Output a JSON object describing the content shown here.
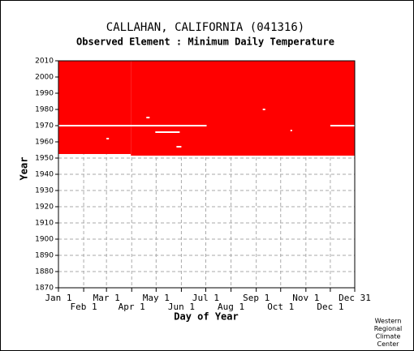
{
  "chart_data": {
    "type": "availability",
    "title": "CALLAHAN, CALIFORNIA   (041316)",
    "subtitle": "Observed Element : Minimum Daily Temperature",
    "x_label": "Day of Year",
    "y_label": "Year",
    "credit": [
      "Western",
      "Regional",
      "Climate",
      "Center"
    ],
    "color": "#ff0000",
    "gap_color": "#ffffff",
    "grid": true,
    "xlim": [
      1,
      365
    ],
    "ylim": [
      1870,
      2010
    ],
    "xticks": [
      {
        "value": 1,
        "label": "Jan 1"
      },
      {
        "value": 32,
        "label": "Feb 1"
      },
      {
        "value": 60,
        "label": "Mar 1"
      },
      {
        "value": 91,
        "label": "Apr 1"
      },
      {
        "value": 121,
        "label": "May 1"
      },
      {
        "value": 152,
        "label": "Jun 1"
      },
      {
        "value": 182,
        "label": "Jul 1"
      },
      {
        "value": 213,
        "label": "Aug 1"
      },
      {
        "value": 244,
        "label": "Sep 1"
      },
      {
        "value": 274,
        "label": "Oct 1"
      },
      {
        "value": 305,
        "label": "Nov 1"
      },
      {
        "value": 335,
        "label": "Dec 1"
      },
      {
        "value": 365,
        "label": "Dec 31"
      }
    ],
    "yticks": [
      1870,
      1880,
      1890,
      1900,
      1910,
      1920,
      1930,
      1940,
      1950,
      1960,
      1970,
      1980,
      1990,
      2000,
      2010
    ],
    "periods": [
      {
        "day_start": 1,
        "day_end": 90,
        "year_start": 1952.5,
        "year_end": 2010
      },
      {
        "day_start": 90,
        "day_end": 365,
        "year_start": 1951.5,
        "year_end": 2010
      }
    ],
    "gaps": [
      {
        "day_start": 1,
        "day_end": 183,
        "year": 1970
      },
      {
        "day_start": 335,
        "day_end": 365,
        "year": 1970
      },
      {
        "day_start": 120,
        "day_end": 150,
        "year": 1966
      },
      {
        "day_start": 146,
        "day_end": 152,
        "year": 1957
      },
      {
        "day_start": 109,
        "day_end": 113,
        "year": 1975
      },
      {
        "day_start": 60,
        "day_end": 63,
        "year": 1962
      },
      {
        "day_start": 252,
        "day_end": 255,
        "year": 1980
      },
      {
        "day_start": 286,
        "day_end": 288,
        "year": 1967
      }
    ]
  }
}
